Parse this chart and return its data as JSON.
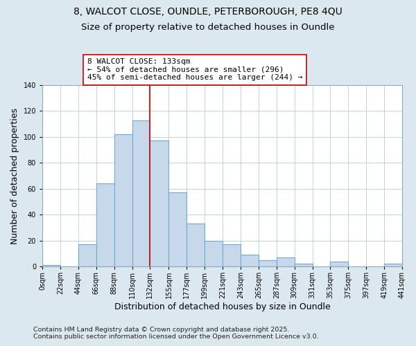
{
  "title1": "8, WALCOT CLOSE, OUNDLE, PETERBOROUGH, PE8 4QU",
  "title2": "Size of property relative to detached houses in Oundle",
  "xlabel": "Distribution of detached houses by size in Oundle",
  "ylabel": "Number of detached properties",
  "bin_edges": [
    0,
    22,
    44,
    66,
    88,
    110,
    132,
    155,
    177,
    199,
    221,
    243,
    265,
    287,
    309,
    331,
    353,
    375,
    397,
    419,
    441
  ],
  "bin_labels": [
    "0sqm",
    "22sqm",
    "44sqm",
    "66sqm",
    "88sqm",
    "110sqm",
    "132sqm",
    "155sqm",
    "177sqm",
    "199sqm",
    "221sqm",
    "243sqm",
    "265sqm",
    "287sqm",
    "309sqm",
    "331sqm",
    "353sqm",
    "375sqm",
    "397sqm",
    "419sqm",
    "441sqm"
  ],
  "counts": [
    1,
    0,
    17,
    64,
    102,
    113,
    97,
    57,
    33,
    20,
    17,
    9,
    5,
    7,
    2,
    0,
    4,
    0,
    0,
    2
  ],
  "bar_facecolor": "#c8d8eb",
  "bar_edgecolor": "#6aaad4",
  "vline_x": 132,
  "vline_color": "#cc0000",
  "annotation_line1": "8 WALCOT CLOSE: 133sqm",
  "annotation_line2": "← 54% of detached houses are smaller (296)",
  "annotation_line3": "45% of semi-detached houses are larger (244) →",
  "annotation_box_edgecolor": "#cc0000",
  "annotation_box_facecolor": "#ffffff",
  "ylim": [
    0,
    140
  ],
  "yticks": [
    0,
    20,
    40,
    60,
    80,
    100,
    120,
    140
  ],
  "footnote1": "Contains HM Land Registry data © Crown copyright and database right 2025.",
  "footnote2": "Contains public sector information licensed under the Open Government Licence v3.0.",
  "background_color": "#dce8f0",
  "plot_background": "#ffffff",
  "title_fontsize": 10,
  "subtitle_fontsize": 9.5,
  "axis_label_fontsize": 9,
  "tick_fontsize": 7,
  "annotation_fontsize": 8,
  "footnote_fontsize": 6.8
}
